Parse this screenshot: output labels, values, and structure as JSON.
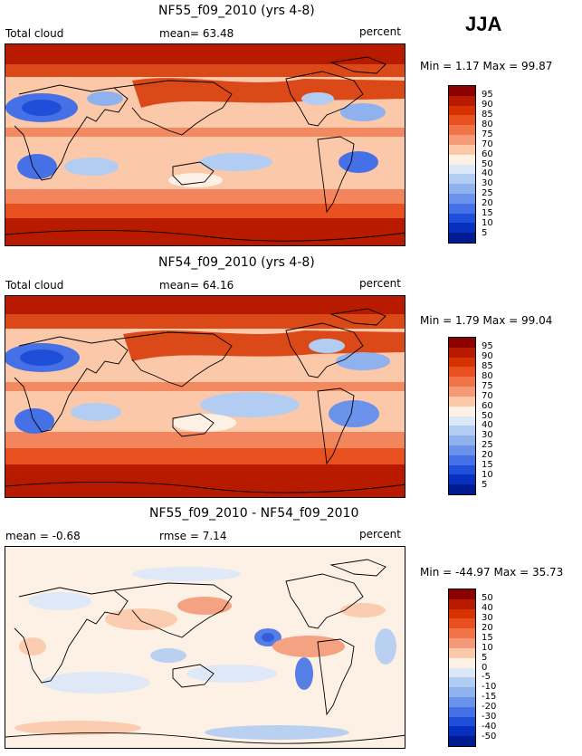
{
  "season": "JJA",
  "units_label": "percent",
  "panels": [
    {
      "id": "p1",
      "title": "NF55_f09_2010 (yrs 4-8)",
      "left_label": "Total cloud",
      "stat_text": "mean=  63.48",
      "right_label": "percent",
      "minmax": "Min =    1.17 Max =   99.87"
    },
    {
      "id": "p2",
      "title": "NF54_f09_2010 (yrs 4-8)",
      "left_label": "Total cloud",
      "stat_text": "mean=  64.16",
      "right_label": "percent",
      "minmax": "Min =    1.79 Max =   99.04"
    },
    {
      "id": "p3",
      "title": "NF55_f09_2010 - NF54_f09_2010",
      "left_label": "mean =  -0.68",
      "stat_text": "rmse =   7.14",
      "right_label": "percent",
      "minmax": "Min = -44.97 Max =   35.73"
    }
  ],
  "colorbar_abs": {
    "levels": [
      "95",
      "90",
      "85",
      "80",
      "75",
      "70",
      "60",
      "50",
      "40",
      "30",
      "25",
      "20",
      "15",
      "10",
      "5"
    ],
    "colors": [
      "#8b0000",
      "#b81a00",
      "#d53200",
      "#e85020",
      "#f07448",
      "#f59a78",
      "#fbc8aa",
      "#fdf1e6",
      "#dce8f8",
      "#b3cdf2",
      "#8fb2ee",
      "#6a92ea",
      "#4671e6",
      "#1f4fd8",
      "#0830c0",
      "#001a90"
    ]
  },
  "colorbar_diff": {
    "levels": [
      "50",
      "40",
      "30",
      "20",
      "15",
      "10",
      "5",
      "0",
      "-5",
      "-10",
      "-15",
      "-20",
      "-30",
      "-40",
      "-50"
    ],
    "colors": [
      "#8b0000",
      "#b81a00",
      "#d53200",
      "#e85020",
      "#f07448",
      "#f59a78",
      "#fbc8aa",
      "#fdf1e6",
      "#dce8f8",
      "#b3cdf2",
      "#8fb2ee",
      "#6a92ea",
      "#4671e6",
      "#1f4fd8",
      "#0830c0",
      "#001a90"
    ]
  }
}
